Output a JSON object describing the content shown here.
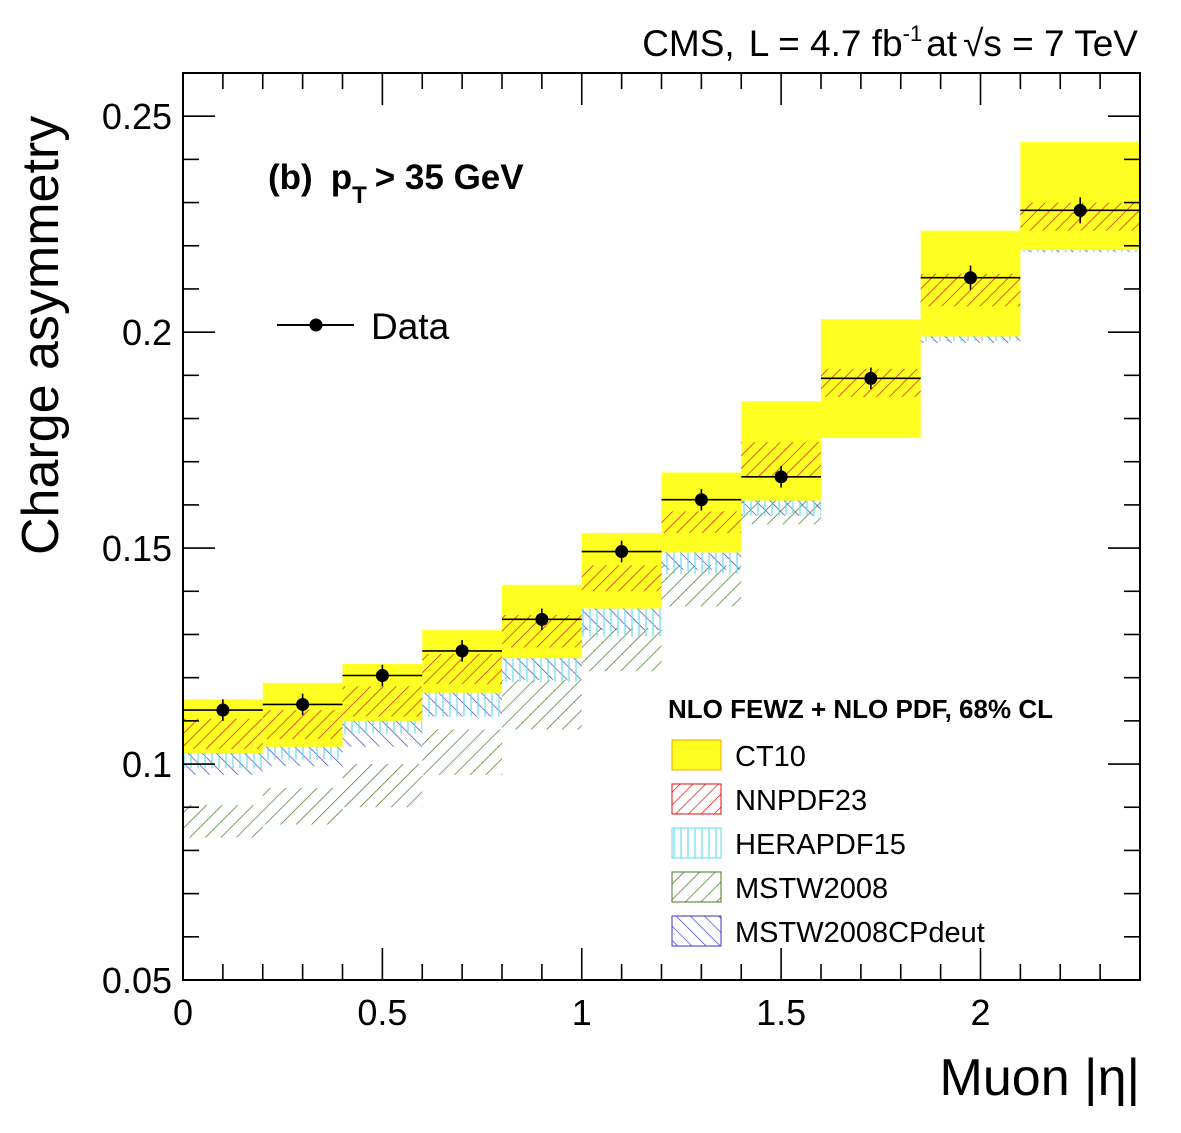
{
  "chart_data": {
    "type": "band-histogram",
    "header": {
      "experiment": "CMS,",
      "lumi_prefix": "L = 4.7 fb",
      "lumi_exponent": "-1",
      "energy_prefix": "at",
      "sqrt_symbol": "√",
      "energy_suffix": "s = 7 TeV"
    },
    "panel_label": {
      "prefix": "(b)",
      "pt_symbol": "p",
      "pt_subscript": "T",
      "cut": "> 35 GeV"
    },
    "xlabel": "Muon |η|",
    "ylabel": "Charge asymmetry",
    "xlim": [
      0,
      2.4
    ],
    "ylim": [
      0.05,
      0.26
    ],
    "x_ticks": [
      "0",
      "0.5",
      "1",
      "1.5",
      "2"
    ],
    "x_tick_values": [
      0,
      0.5,
      1,
      1.5,
      2
    ],
    "y_ticks": [
      "0.05",
      "0.1",
      "0.15",
      "0.2",
      "0.25"
    ],
    "y_tick_values": [
      0.05,
      0.1,
      0.15,
      0.2,
      0.25
    ],
    "bin_edges": [
      0,
      0.2,
      0.4,
      0.6,
      0.8,
      1.0,
      1.2,
      1.4,
      1.6,
      1.85,
      2.1,
      2.4
    ],
    "data": {
      "name": "Data",
      "x": [
        0.1,
        0.3,
        0.5,
        0.7,
        0.9,
        1.1,
        1.3,
        1.5,
        1.725,
        1.975,
        2.25
      ],
      "y": [
        0.1125,
        0.1138,
        0.1205,
        0.1262,
        0.1335,
        0.1492,
        0.1612,
        0.1665,
        0.1893,
        0.2126,
        0.2282
      ],
      "yerr": [
        0.0025,
        0.0025,
        0.0025,
        0.0025,
        0.0025,
        0.0025,
        0.0025,
        0.0025,
        0.0025,
        0.0028,
        0.003
      ]
    },
    "legend_title": "NLO FEWZ + NLO PDF, 68% CL",
    "series": [
      {
        "name": "CT10",
        "style": "solid",
        "fill": "#ffff22",
        "stroke": "#ffa500",
        "low": [
          0.1025,
          0.104,
          0.11,
          0.1165,
          0.1245,
          0.136,
          0.149,
          0.161,
          0.1755,
          0.199,
          0.219
        ],
        "high": [
          0.115,
          0.1188,
          0.1232,
          0.131,
          0.1415,
          0.1535,
          0.1675,
          0.184,
          0.203,
          0.2235,
          0.244
        ]
      },
      {
        "name": "NNPDF23",
        "style": "hatch-down",
        "color": "#dd1111",
        "low": [
          0.1035,
          0.1058,
          0.111,
          0.1185,
          0.127,
          0.14,
          0.1535,
          0.1665,
          0.185,
          0.206,
          0.2235
        ],
        "high": [
          0.1105,
          0.1125,
          0.118,
          0.1255,
          0.1345,
          0.146,
          0.1585,
          0.1745,
          0.1915,
          0.2135,
          0.23
        ]
      },
      {
        "name": "HERAPDF15",
        "style": "vertical",
        "color": "#66ddee",
        "low": [
          0.099,
          0.101,
          0.107,
          0.111,
          0.119,
          0.1295,
          0.144,
          0.1575,
          0.1765,
          0.198,
          0.2185
        ],
        "high": [
          0.105,
          0.107,
          0.1125,
          0.1205,
          0.129,
          0.14,
          0.154,
          0.169,
          0.186,
          0.2065,
          0.228
        ]
      },
      {
        "name": "MSTW2008",
        "style": "hatch-down",
        "color": "#447722",
        "low": [
          0.083,
          0.086,
          0.09,
          0.0975,
          0.108,
          0.1215,
          0.1365,
          0.1555,
          0.1765,
          0.201,
          0.223
        ],
        "high": [
          0.0905,
          0.0945,
          0.1,
          0.108,
          0.1195,
          0.1315,
          0.146,
          0.163,
          0.1845,
          0.208,
          0.23
        ]
      },
      {
        "name": "MSTW2008CPdeut",
        "style": "hatch-up",
        "color": "#3333cc",
        "low": [
          0.0975,
          0.0995,
          0.104,
          0.111,
          0.1195,
          0.131,
          0.145,
          0.1575,
          0.176,
          0.1975,
          0.2185
        ],
        "high": [
          0.105,
          0.1075,
          0.112,
          0.12,
          0.1285,
          0.14,
          0.1545,
          0.167,
          0.186,
          0.2075,
          0.2345
        ]
      }
    ]
  }
}
